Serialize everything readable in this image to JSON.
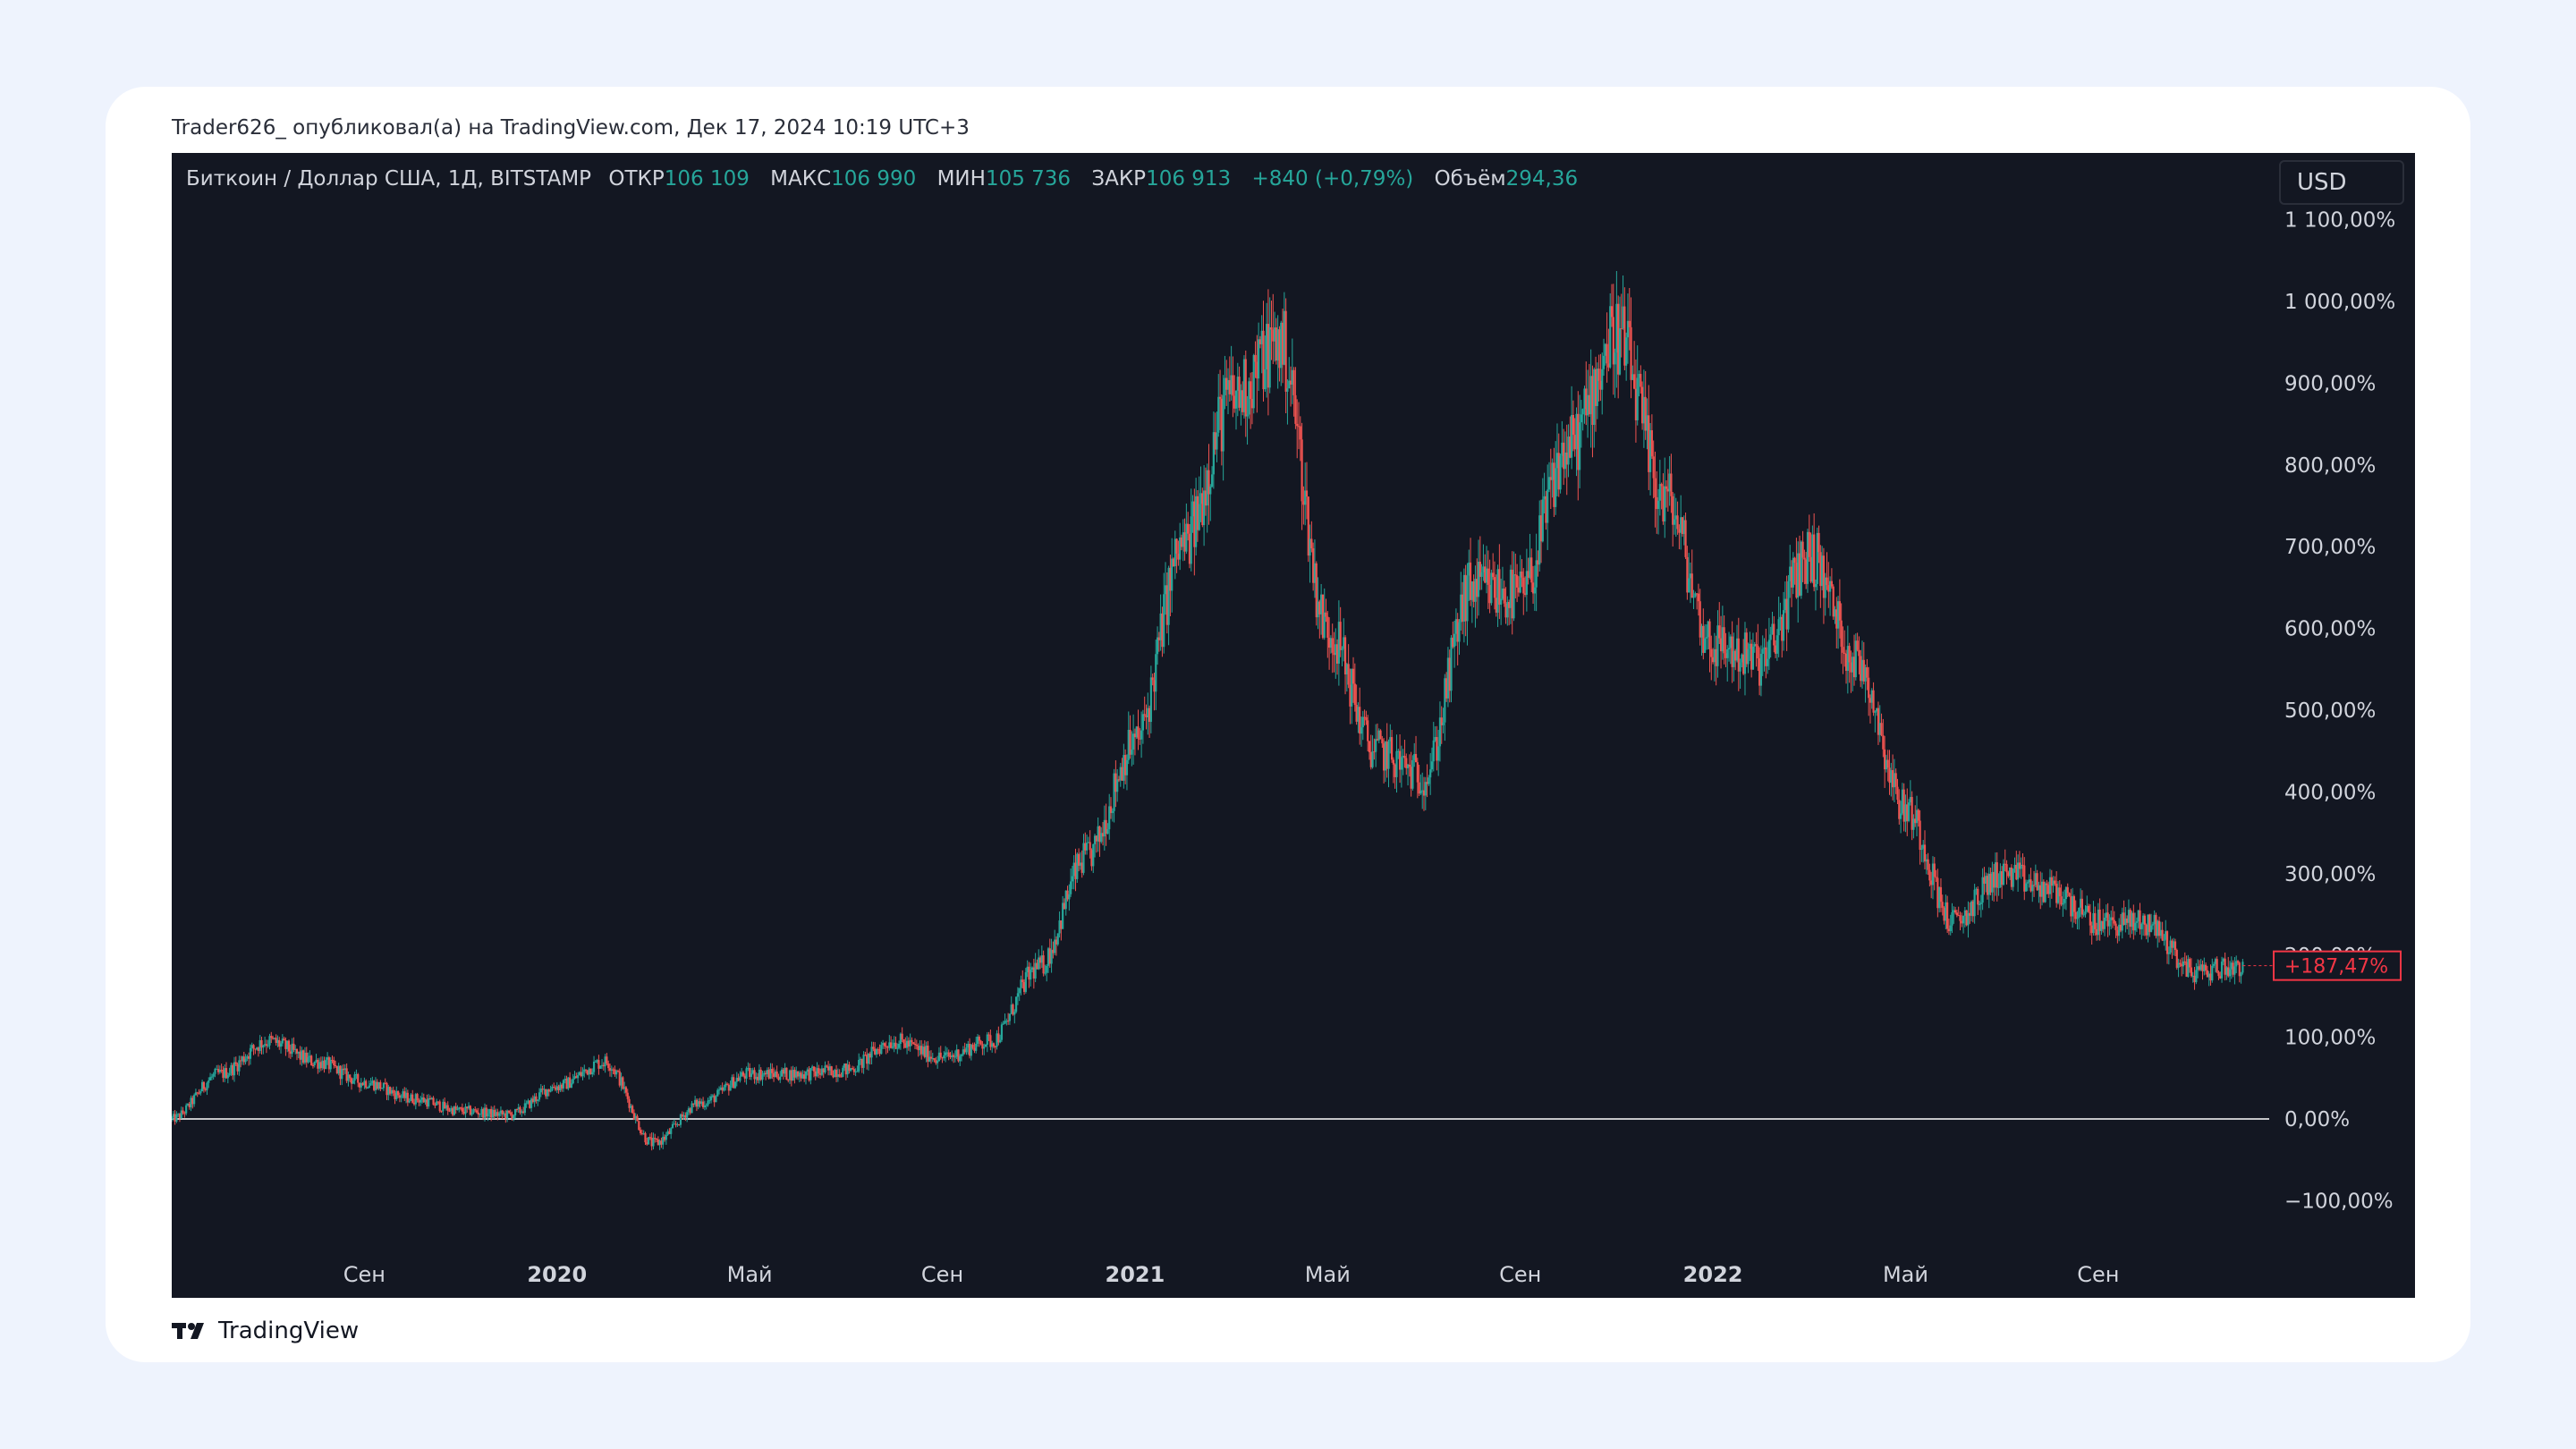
{
  "caption": "Trader626_ опубликовал(а) на TradingView.com, Дек 17, 2024 10:19 UTC+3",
  "legend": {
    "symbol": "Биткоин / Доллар США, 1Д, BITSTAMP",
    "open_label": "ОТКР",
    "open_value": "106 109",
    "high_label": "МАКС",
    "high_value": "106 990",
    "low_label": "МИН",
    "low_value": "105 736",
    "close_label": "ЗАКР",
    "close_value": "106 913",
    "change": "+840 (+0,79%)",
    "volume_label": "Объём",
    "volume_value": "294,36"
  },
  "currency_button": "USD",
  "footer_brand": "TradingView",
  "colors": {
    "background": "#131722",
    "up": "#26a69a",
    "down": "#ef5350",
    "axis_text": "#d1d4dc",
    "baseline": "#ffffff",
    "badge": "#f23645"
  },
  "chart_data": {
    "type": "candlestick",
    "symbol": "Биткоин / Доллар США",
    "interval": "1Д",
    "scale": "percent",
    "y_unit": "%",
    "ylim": [
      -150,
      1150
    ],
    "y_ticks": [
      {
        "value": 1100,
        "label": "1 100,00%"
      },
      {
        "value": 1000,
        "label": "1 000,00%"
      },
      {
        "value": 900,
        "label": "900,00%"
      },
      {
        "value": 800,
        "label": "800,00%"
      },
      {
        "value": 700,
        "label": "700,00%"
      },
      {
        "value": 600,
        "label": "600,00%"
      },
      {
        "value": 500,
        "label": "500,00%"
      },
      {
        "value": 400,
        "label": "400,00%"
      },
      {
        "value": 300,
        "label": "300,00%"
      },
      {
        "value": 200,
        "label": "200,00%"
      },
      {
        "value": 100,
        "label": "100,00%"
      },
      {
        "value": 0,
        "label": "0,00%"
      },
      {
        "value": -100,
        "label": "−100,00%"
      }
    ],
    "x_range": [
      "2019-05",
      "2022-12"
    ],
    "x_ticks": [
      {
        "x": "2019-09",
        "label": "Сен",
        "bold": false
      },
      {
        "x": "2020-01",
        "label": "2020",
        "bold": true
      },
      {
        "x": "2020-05",
        "label": "Май",
        "bold": false
      },
      {
        "x": "2020-09",
        "label": "Сен",
        "bold": false
      },
      {
        "x": "2021-01",
        "label": "2021",
        "bold": true
      },
      {
        "x": "2021-05",
        "label": "Май",
        "bold": false
      },
      {
        "x": "2021-09",
        "label": "Сен",
        "bold": false
      },
      {
        "x": "2022-01",
        "label": "2022",
        "bold": true
      },
      {
        "x": "2022-05",
        "label": "Май",
        "bold": false
      },
      {
        "x": "2022-09",
        "label": "Сен",
        "bold": false
      }
    ],
    "baseline_value": 0,
    "last_value_label": "+187,47%",
    "last_value": 187.47,
    "series": [
      {
        "x": "2019-05",
        "y": 0
      },
      {
        "x": "2019-06",
        "y": 55
      },
      {
        "x": "2019-07",
        "y": 95
      },
      {
        "x": "2019-08",
        "y": 70
      },
      {
        "x": "2019-09",
        "y": 45
      },
      {
        "x": "2019-10",
        "y": 25
      },
      {
        "x": "2019-11",
        "y": 10
      },
      {
        "x": "2019-12",
        "y": 5
      },
      {
        "x": "2020-01",
        "y": 40
      },
      {
        "x": "2020-02",
        "y": 70
      },
      {
        "x": "2020-03",
        "y": -30
      },
      {
        "x": "2020-04",
        "y": 20
      },
      {
        "x": "2020-05",
        "y": 55
      },
      {
        "x": "2020-06",
        "y": 55
      },
      {
        "x": "2020-07",
        "y": 60
      },
      {
        "x": "2020-08",
        "y": 95
      },
      {
        "x": "2020-09",
        "y": 75
      },
      {
        "x": "2020-10",
        "y": 95
      },
      {
        "x": "2020-11",
        "y": 185
      },
      {
        "x": "2020-12",
        "y": 320
      },
      {
        "x": "2021-01",
        "y": 460
      },
      {
        "x": "2021-02",
        "y": 700
      },
      {
        "x": "2021-03",
        "y": 880
      },
      {
        "x": "2021-04",
        "y": 950
      },
      {
        "x": "2021-05",
        "y": 600
      },
      {
        "x": "2021-06",
        "y": 450
      },
      {
        "x": "2021-07",
        "y": 420
      },
      {
        "x": "2021-08",
        "y": 650
      },
      {
        "x": "2021-09",
        "y": 640
      },
      {
        "x": "2021-10",
        "y": 820
      },
      {
        "x": "2021-11",
        "y": 960
      },
      {
        "x": "2021-12",
        "y": 760
      },
      {
        "x": "2022-01",
        "y": 580
      },
      {
        "x": "2022-02",
        "y": 560
      },
      {
        "x": "2022-03",
        "y": 690
      },
      {
        "x": "2022-04",
        "y": 560
      },
      {
        "x": "2022-05",
        "y": 380
      },
      {
        "x": "2022-06",
        "y": 240
      },
      {
        "x": "2022-07",
        "y": 300
      },
      {
        "x": "2022-08",
        "y": 280
      },
      {
        "x": "2022-09",
        "y": 240
      },
      {
        "x": "2022-10",
        "y": 240
      },
      {
        "x": "2022-11",
        "y": 180
      },
      {
        "x": "2022-12",
        "y": 187.47
      }
    ]
  }
}
